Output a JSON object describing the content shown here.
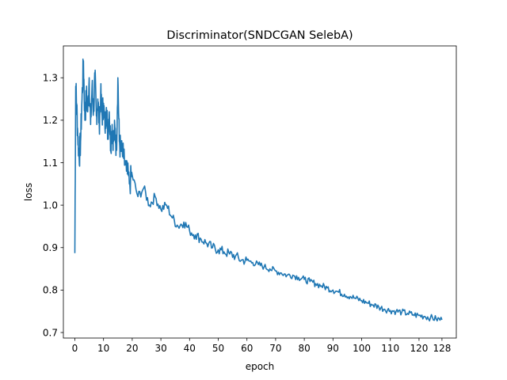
{
  "chart_data": {
    "type": "line",
    "title": "Discriminator(SNDCGAN SelebA)",
    "xlabel": "epoch",
    "ylabel": "loss",
    "xlim": [
      -4,
      133
    ],
    "ylim": [
      0.687,
      1.375
    ],
    "xticks": [
      0,
      10,
      20,
      30,
      40,
      50,
      60,
      70,
      80,
      90,
      100,
      110,
      120,
      128
    ],
    "yticks": [
      0.7,
      0.8,
      0.9,
      1.0,
      1.1,
      1.2,
      1.3
    ],
    "grid": false,
    "legend": "none",
    "series": [
      {
        "color": "#1f77b4",
        "x": [
          0,
          0.3,
          0.6,
          1,
          1.5,
          2,
          2.5,
          3,
          3.5,
          4,
          4.5,
          5,
          5.5,
          6,
          6.5,
          7,
          7.5,
          8,
          8.5,
          9,
          9.5,
          10,
          10.5,
          11,
          11.5,
          12,
          12.5,
          13,
          13.5,
          14,
          14.5,
          15,
          15.5,
          16,
          17,
          18,
          19,
          20,
          22,
          24,
          26,
          28,
          30,
          32,
          34,
          36,
          38,
          40,
          42,
          44,
          46,
          48,
          50,
          52,
          54,
          56,
          58,
          60,
          62,
          64,
          66,
          68,
          70,
          72,
          74,
          76,
          78,
          80,
          82,
          84,
          86,
          88,
          90,
          92,
          94,
          96,
          98,
          100,
          102,
          104,
          106,
          108,
          110,
          112,
          114,
          116,
          118,
          120,
          122,
          124,
          126,
          128
        ],
        "y": [
          0.887,
          1.28,
          1.24,
          1.17,
          1.11,
          1.15,
          1.25,
          1.34,
          1.2,
          1.26,
          1.22,
          1.3,
          1.19,
          1.28,
          1.22,
          1.3,
          1.21,
          1.25,
          1.19,
          1.26,
          1.21,
          1.24,
          1.18,
          1.23,
          1.17,
          1.22,
          1.14,
          1.19,
          1.15,
          1.18,
          1.13,
          1.3,
          1.15,
          1.13,
          1.11,
          1.08,
          1.05,
          1.07,
          1.02,
          1.04,
          1.0,
          1.02,
          0.99,
          1.0,
          0.97,
          0.95,
          0.96,
          0.94,
          0.93,
          0.92,
          0.91,
          0.9,
          0.895,
          0.89,
          0.885,
          0.88,
          0.87,
          0.87,
          0.865,
          0.86,
          0.855,
          0.85,
          0.845,
          0.84,
          0.835,
          0.835,
          0.83,
          0.825,
          0.82,
          0.815,
          0.81,
          0.805,
          0.8,
          0.795,
          0.79,
          0.785,
          0.78,
          0.775,
          0.77,
          0.765,
          0.76,
          0.755,
          0.752,
          0.75,
          0.748,
          0.745,
          0.742,
          0.74,
          0.738,
          0.735,
          0.732,
          0.73
        ]
      }
    ]
  }
}
